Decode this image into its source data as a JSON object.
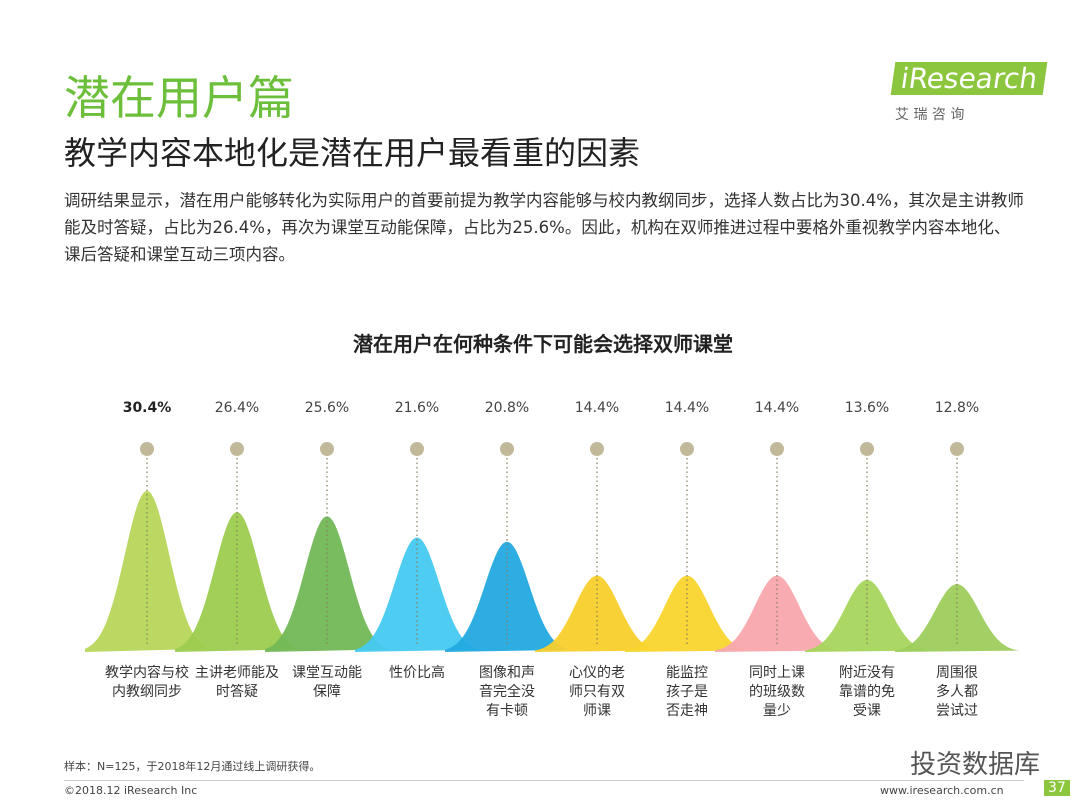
{
  "header": {
    "title": "潜在用户篇",
    "subtitle": "教学内容本地化是潜在用户最看重的因素",
    "logo": "iResearch",
    "logo_sub": "艾 瑞 咨 询",
    "paragraph": "调研结果显示，潜在用户能够转化为实际用户的首要前提为教学内容能够与校内教纲同步，选择人数占比为30.4%，其次是主讲教师能及时答疑，占比为26.4%，再次为课堂互动能保障，占比为25.6%。因此，机构在双师推进过程中要格外重视教学内容本地化、课后答疑和课堂互动三项内容。"
  },
  "chart_data": {
    "type": "bell",
    "title": "潜在用户在何种条件下可能会选择双师课堂",
    "categories": [
      "教学内容与校\n内教纲同步",
      "主讲老师能及\n时答疑",
      "课堂互动能\n保障",
      "性价比高",
      "图像和声\n音完全没\n有卡顿",
      "心仪的老\n师只有双\n师课",
      "能监控\n孩子是\n否走神",
      "同时上课\n的班级数\n量少",
      "附近没有\n靠谱的免\n受课",
      "周围很\n多人都\n尝试过"
    ],
    "values": [
      30.4,
      26.4,
      25.6,
      21.6,
      20.8,
      14.4,
      14.4,
      14.4,
      13.6,
      12.8
    ],
    "value_labels": [
      "30.4%",
      "26.4%",
      "25.6%",
      "21.6%",
      "20.8%",
      "14.4%",
      "14.4%",
      "14.4%",
      "13.6%",
      "12.8%"
    ],
    "colors": [
      "#b7d65a",
      "#9ccc4e",
      "#72b856",
      "#45c9f0",
      "#22a9e0",
      "#f8cf2c",
      "#f9d52e",
      "#f8a8ae",
      "#a6d55c",
      "#9dce5c"
    ]
  },
  "footer": {
    "note": "样本：N=125，于2018年12月通过线上调研获得。",
    "copyright": "©2018.12 iResearch Inc",
    "url": "www.iresearch.com.cn",
    "page": "37",
    "watermark": "投资数据库"
  }
}
